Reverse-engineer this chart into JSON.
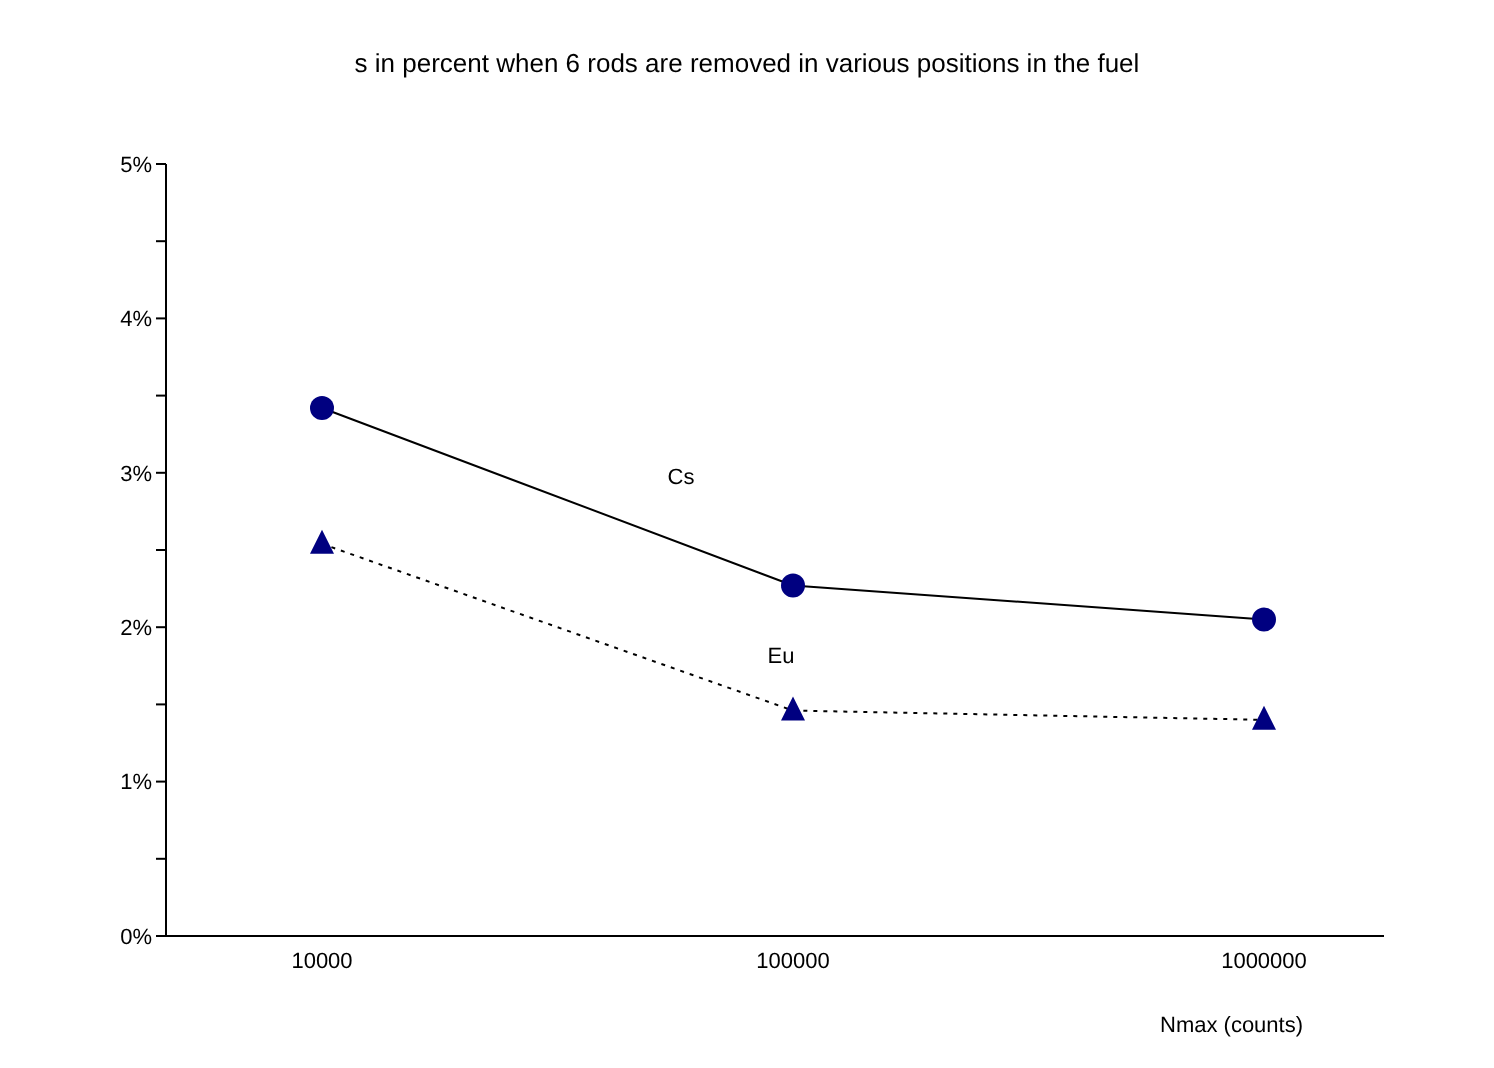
{
  "chart_data": {
    "type": "line",
    "title": "s in percent when 6 rods are removed in various positions in the fuel",
    "xlabel": "Nmax  (counts)",
    "categories": [
      "10000",
      "100000",
      "1000000"
    ],
    "series": [
      {
        "name": "Cs",
        "color": "#000080",
        "values": [
          3.42,
          2.27,
          2.05
        ],
        "marker": "circle",
        "line_style": "solid"
      },
      {
        "name": "Eu",
        "color": "#000080",
        "values": [
          2.54,
          1.46,
          1.4
        ],
        "marker": "triangle",
        "line_style": "dotted"
      }
    ],
    "ylim": [
      0,
      5
    ],
    "yticks": [
      {
        "value": 0,
        "label": "0%"
      },
      {
        "value": 0.5,
        "label": null
      },
      {
        "value": 1,
        "label": "1%"
      },
      {
        "value": 1.5,
        "label": null
      },
      {
        "value": 2,
        "label": "2%"
      },
      {
        "value": 2.5,
        "label": null
      },
      {
        "value": 3,
        "label": "3%"
      },
      {
        "value": 3.5,
        "label": null
      },
      {
        "value": 4,
        "label": "4%"
      },
      {
        "value": 4.5,
        "label": null
      },
      {
        "value": 5,
        "label": "5%"
      }
    ],
    "grid": false,
    "legend": false
  }
}
